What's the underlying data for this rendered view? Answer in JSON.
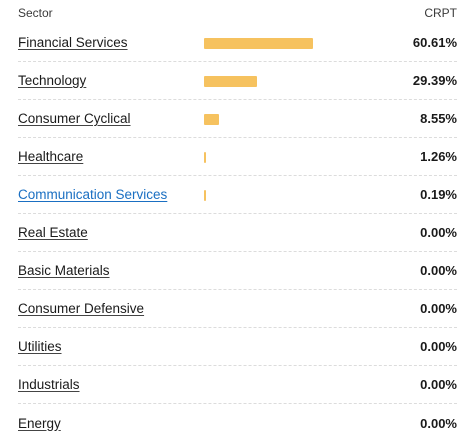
{
  "header": {
    "sector_label": "Sector",
    "fund_label": "CRPT"
  },
  "bar_color": "#f6c25f",
  "link_hover_color": "#1a6fc2",
  "rows": [
    {
      "sector": "Financial Services",
      "value_text": "60.61%",
      "value": 60.61,
      "hovered": false
    },
    {
      "sector": "Technology",
      "value_text": "29.39%",
      "value": 29.39,
      "hovered": false
    },
    {
      "sector": "Consumer Cyclical",
      "value_text": "8.55%",
      "value": 8.55,
      "hovered": false
    },
    {
      "sector": "Healthcare",
      "value_text": "1.26%",
      "value": 1.26,
      "hovered": false
    },
    {
      "sector": "Communication Services",
      "value_text": "0.19%",
      "value": 0.19,
      "hovered": true
    },
    {
      "sector": "Real Estate",
      "value_text": "0.00%",
      "value": 0.0,
      "hovered": false
    },
    {
      "sector": "Basic Materials",
      "value_text": "0.00%",
      "value": 0.0,
      "hovered": false
    },
    {
      "sector": "Consumer Defensive",
      "value_text": "0.00%",
      "value": 0.0,
      "hovered": false
    },
    {
      "sector": "Utilities",
      "value_text": "0.00%",
      "value": 0.0,
      "hovered": false
    },
    {
      "sector": "Industrials",
      "value_text": "0.00%",
      "value": 0.0,
      "hovered": false
    },
    {
      "sector": "Energy",
      "value_text": "0.00%",
      "value": 0.0,
      "hovered": false
    }
  ]
}
